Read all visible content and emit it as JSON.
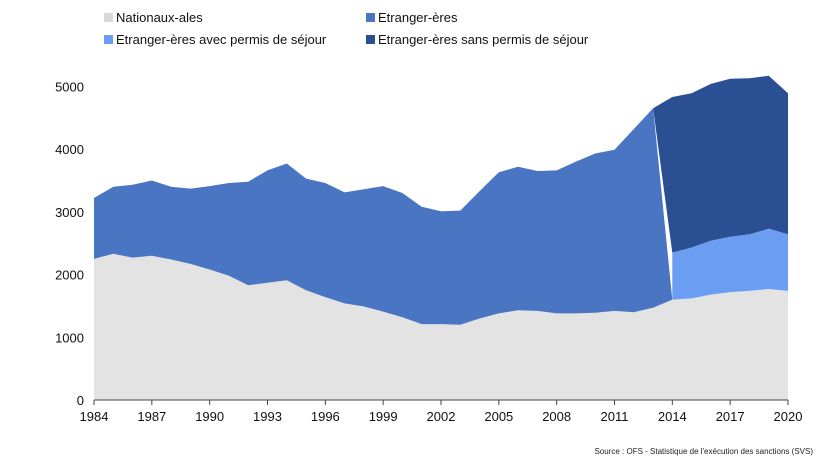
{
  "chart_data": {
    "type": "area",
    "title": "",
    "xlabel": "",
    "ylabel": "",
    "ylim": [
      0,
      5000
    ],
    "yticks": [
      0,
      1000,
      2000,
      3000,
      4000,
      5000
    ],
    "xticks": [
      1984,
      1987,
      1990,
      1993,
      1996,
      1999,
      2002,
      2005,
      2008,
      2011,
      2014,
      2017,
      2020
    ],
    "grid": false,
    "legend_position": "top-left",
    "x": [
      1984,
      1985,
      1986,
      1987,
      1988,
      1989,
      1990,
      1991,
      1992,
      1993,
      1994,
      1995,
      1996,
      1997,
      1998,
      1999,
      2000,
      2001,
      2002,
      2003,
      2004,
      2005,
      2006,
      2007,
      2008,
      2009,
      2010,
      2011,
      2012,
      2013,
      2014,
      2015,
      2016,
      2017,
      2018,
      2019,
      2020
    ],
    "series": [
      {
        "name": "Nationaux-ales",
        "color": "#e3e3e3",
        "values": [
          2250,
          2330,
          2270,
          2300,
          2240,
          2170,
          2080,
          1980,
          1830,
          1870,
          1910,
          1750,
          1640,
          1540,
          1490,
          1410,
          1320,
          1210,
          1210,
          1200,
          1300,
          1380,
          1430,
          1420,
          1380,
          1380,
          1390,
          1420,
          1400,
          1470,
          1600,
          1620,
          1680,
          1720,
          1740,
          1770,
          1740
        ]
      },
      {
        "name": "Etranger-ères",
        "color": "#4a75c2",
        "values": [
          970,
          1070,
          1160,
          1200,
          1160,
          1200,
          1330,
          1480,
          1650,
          1790,
          1860,
          1780,
          1820,
          1770,
          1870,
          2000,
          1980,
          1870,
          1800,
          1820,
          2030,
          2250,
          2290,
          2230,
          2280,
          2420,
          2540,
          2570,
          2920,
          3180,
          null,
          null,
          null,
          null,
          null,
          null,
          null
        ]
      },
      {
        "name": "Etranger-ères avec permis de séjour",
        "color": "#6b9ef2",
        "values": [
          null,
          null,
          null,
          null,
          null,
          null,
          null,
          null,
          null,
          null,
          null,
          null,
          null,
          null,
          null,
          null,
          null,
          null,
          null,
          null,
          null,
          null,
          null,
          null,
          null,
          null,
          null,
          null,
          null,
          null,
          750,
          810,
          860,
          880,
          900,
          960,
          900
        ]
      },
      {
        "name": "Etranger-ères sans permis de séjour",
        "color": "#2b4f93",
        "values": [
          null,
          null,
          null,
          null,
          null,
          null,
          null,
          null,
          null,
          null,
          null,
          null,
          null,
          null,
          null,
          null,
          null,
          null,
          null,
          null,
          null,
          null,
          null,
          null,
          null,
          null,
          null,
          null,
          null,
          null,
          2480,
          2460,
          2500,
          2520,
          2490,
          2440,
          2250
        ]
      }
    ]
  },
  "source": "Source : OFS - Statistique de l'exécution des sanctions (SVS)"
}
